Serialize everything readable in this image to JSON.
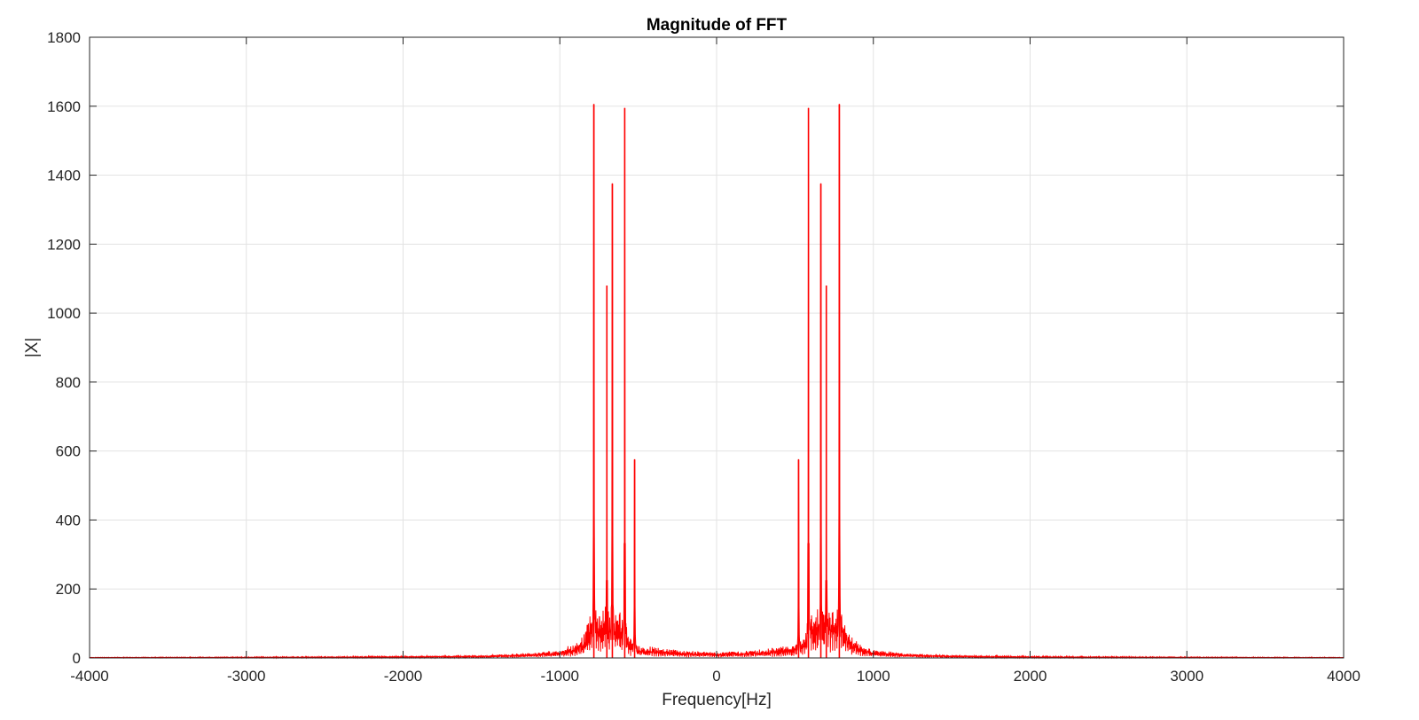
{
  "chart_data": {
    "type": "line",
    "title": "Magnitude of FFT",
    "xlabel": "Frequency[Hz]",
    "ylabel": "|X|",
    "xlim": [
      -4000,
      4000
    ],
    "ylim": [
      0,
      1800
    ],
    "xticks": [
      -4000,
      -3000,
      -2000,
      -1000,
      0,
      1000,
      2000,
      3000,
      4000
    ],
    "yticks": [
      0,
      200,
      400,
      600,
      800,
      1000,
      1200,
      1400,
      1600,
      1800
    ],
    "grid": true,
    "line_color": "#ff0000",
    "peaks": [
      {
        "x": -783,
        "y": 1605
      },
      {
        "x": -700,
        "y": 1080
      },
      {
        "x": -665,
        "y": 1375
      },
      {
        "x": -586,
        "y": 1595
      },
      {
        "x": -523,
        "y": 575
      },
      {
        "x": 523,
        "y": 575
      },
      {
        "x": 586,
        "y": 1595
      },
      {
        "x": 665,
        "y": 1375
      },
      {
        "x": 700,
        "y": 1080
      },
      {
        "x": 783,
        "y": 1605
      }
    ],
    "envelope": [
      {
        "x": -4000,
        "y": 2
      },
      {
        "x": -3000,
        "y": 3
      },
      {
        "x": -2000,
        "y": 5
      },
      {
        "x": -1500,
        "y": 8
      },
      {
        "x": -1200,
        "y": 14
      },
      {
        "x": -1000,
        "y": 25
      },
      {
        "x": -900,
        "y": 45
      },
      {
        "x": -850,
        "y": 70
      },
      {
        "x": -800,
        "y": 140
      },
      {
        "x": -700,
        "y": 160
      },
      {
        "x": -600,
        "y": 130
      },
      {
        "x": -550,
        "y": 60
      },
      {
        "x": -500,
        "y": 40
      },
      {
        "x": -400,
        "y": 32
      },
      {
        "x": -200,
        "y": 22
      },
      {
        "x": 0,
        "y": 18
      },
      {
        "x": 200,
        "y": 22
      },
      {
        "x": 400,
        "y": 32
      },
      {
        "x": 500,
        "y": 40
      },
      {
        "x": 550,
        "y": 60
      },
      {
        "x": 600,
        "y": 130
      },
      {
        "x": 700,
        "y": 160
      },
      {
        "x": 800,
        "y": 140
      },
      {
        "x": 850,
        "y": 70
      },
      {
        "x": 900,
        "y": 45
      },
      {
        "x": 1000,
        "y": 25
      },
      {
        "x": 1200,
        "y": 14
      },
      {
        "x": 1500,
        "y": 8
      },
      {
        "x": 2000,
        "y": 5
      },
      {
        "x": 3000,
        "y": 3
      },
      {
        "x": 4000,
        "y": 2
      }
    ]
  }
}
